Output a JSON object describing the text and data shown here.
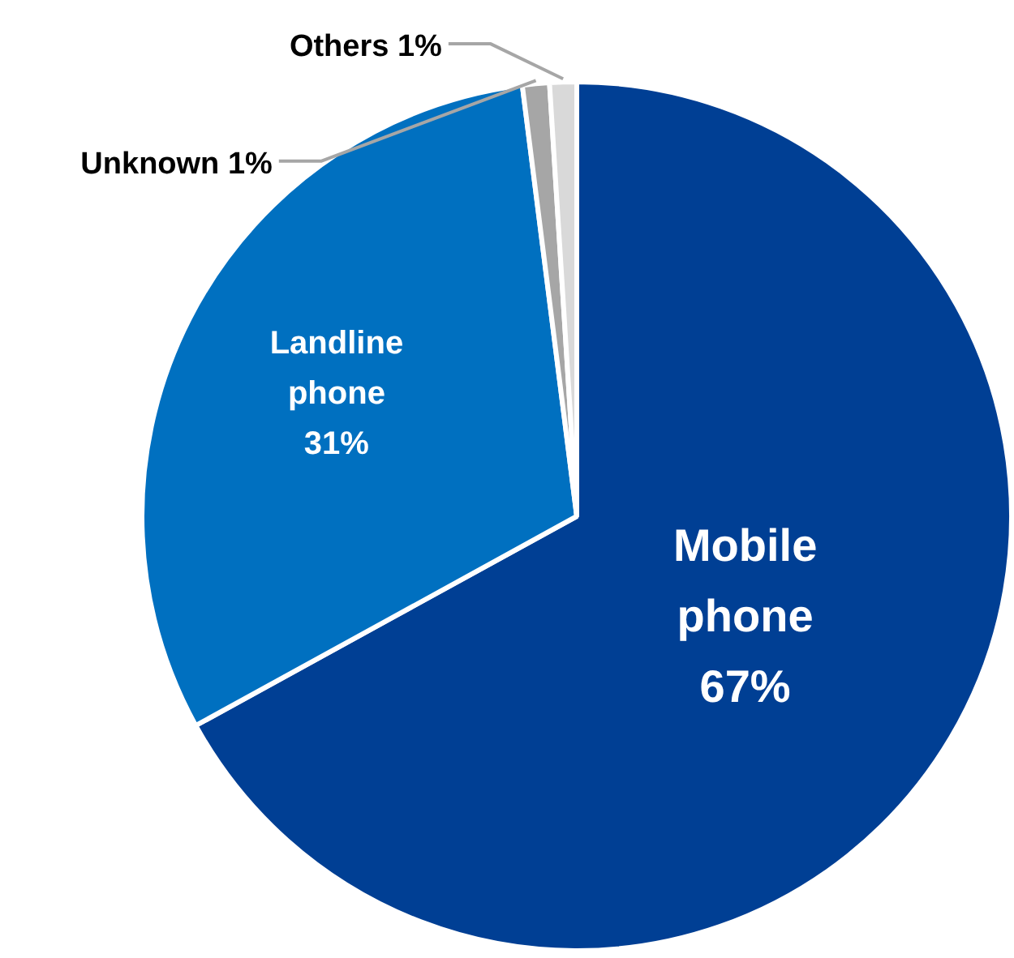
{
  "chart_data": {
    "type": "pie",
    "categories": [
      "Mobile phone",
      "Landline phone",
      "Unknown",
      "Others"
    ],
    "values": [
      67,
      31,
      1,
      1
    ],
    "value_labels": [
      "67%",
      "31%",
      "1%",
      "1%"
    ],
    "colors": [
      "#003f94",
      "#0070c0",
      "#a6a6a6",
      "#d9d9d9"
    ]
  }
}
